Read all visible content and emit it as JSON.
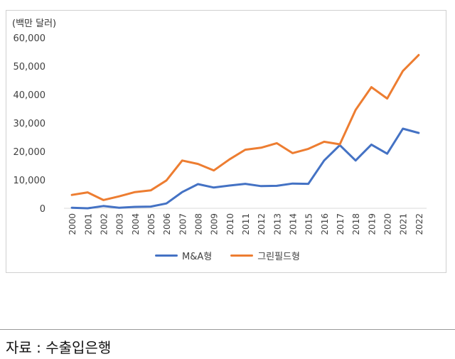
{
  "chart_data": {
    "type": "line",
    "unit_label": "(백만 달러)",
    "categories": [
      "2000",
      "2001",
      "2002",
      "2003",
      "2004",
      "2005",
      "2006",
      "2007",
      "2008",
      "2009",
      "2010",
      "2011",
      "2012",
      "2013",
      "2014",
      "2015",
      "2016",
      "2017",
      "2018",
      "2019",
      "2020",
      "2021",
      "2022"
    ],
    "series": [
      {
        "name": "M&A형",
        "color": "#4472c4",
        "values": [
          200,
          0,
          800,
          200,
          500,
          600,
          1700,
          5700,
          8500,
          7300,
          8000,
          8600,
          7800,
          7900,
          8700,
          8600,
          16800,
          22200,
          16800,
          22400,
          19200,
          28000,
          26500
        ]
      },
      {
        "name": "그린필드형",
        "color": "#ed7d31",
        "values": [
          4700,
          5600,
          2900,
          4200,
          5700,
          6300,
          9800,
          16800,
          15600,
          13300,
          17200,
          20600,
          21300,
          22900,
          19400,
          20900,
          23400,
          22500,
          34600,
          42600,
          38600,
          48300,
          53900
        ]
      }
    ],
    "y_ticks": [
      "0",
      "10,000",
      "20,000",
      "30,000",
      "40,000",
      "50,000",
      "60,000"
    ],
    "ylim": [
      0,
      60000
    ],
    "grid": false,
    "legend_position": "bottom"
  },
  "source_text": "자료 : 수출입은행"
}
